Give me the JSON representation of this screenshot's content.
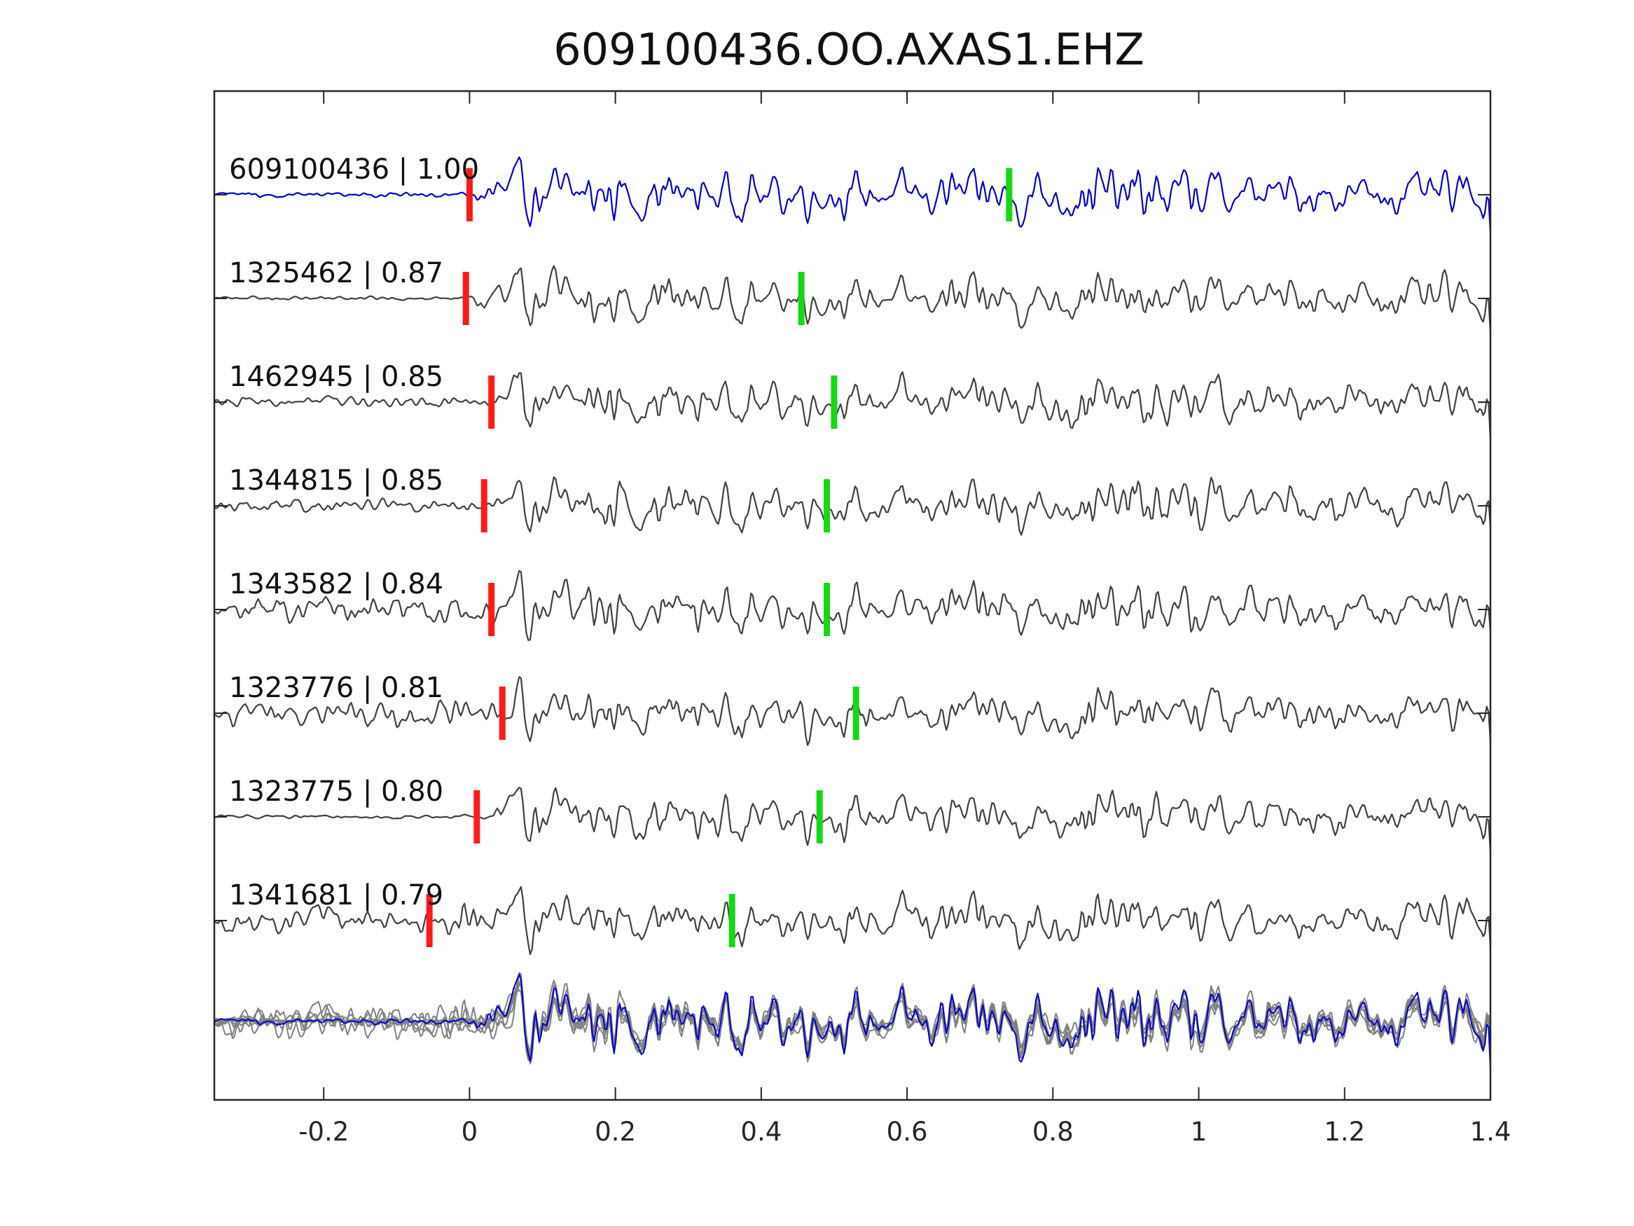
{
  "chart_data": {
    "type": "line",
    "title": "609100436.OO.AXAS1.EHZ",
    "xlabel": "",
    "ylabel": "",
    "xlim": [
      -0.35,
      1.4
    ],
    "xticks": [
      -0.2,
      0,
      0.2,
      0.4,
      0.6,
      0.8,
      1,
      1.2,
      1.4
    ],
    "xtick_labels": [
      "-0.2",
      "0",
      "0.2",
      "0.4",
      "0.6",
      "0.8",
      "1",
      "1.2",
      "1.4"
    ],
    "grid": false,
    "legend": "none",
    "colors": {
      "reference_trace": "#0000cc",
      "neighbor_trace": "#404040",
      "stack_trace": "#808080",
      "p_pick": "#ff1a1a",
      "s_pick": "#14d914"
    },
    "traces": [
      {
        "label": "609100436 | 1.00",
        "event_id": "609100436",
        "cc": 1.0,
        "p_pick": 0.0,
        "s_pick": 0.74,
        "role": "reference",
        "noise": 0.15,
        "seed": 11
      },
      {
        "label": "1325462 | 0.87",
        "event_id": "1325462",
        "cc": 0.87,
        "p_pick": -0.005,
        "s_pick": 0.455,
        "role": "neighbor",
        "noise": 0.12,
        "seed": 23
      },
      {
        "label": "1462945 | 0.85",
        "event_id": "1462945",
        "cc": 0.85,
        "p_pick": 0.03,
        "s_pick": 0.5,
        "role": "neighbor",
        "noise": 0.35,
        "seed": 37
      },
      {
        "label": "1344815 | 0.85",
        "event_id": "1344815",
        "cc": 0.85,
        "p_pick": 0.02,
        "s_pick": 0.49,
        "role": "neighbor",
        "noise": 0.4,
        "seed": 41
      },
      {
        "label": "1343582 | 0.84",
        "event_id": "1343582",
        "cc": 0.84,
        "p_pick": 0.03,
        "s_pick": 0.49,
        "role": "neighbor",
        "noise": 0.85,
        "seed": 53
      },
      {
        "label": "1323776 | 0.81",
        "event_id": "1323776",
        "cc": 0.81,
        "p_pick": 0.045,
        "s_pick": 0.53,
        "role": "neighbor",
        "noise": 0.75,
        "seed": 67
      },
      {
        "label": "1323775 | 0.80",
        "event_id": "1323775",
        "cc": 0.8,
        "p_pick": 0.01,
        "s_pick": 0.48,
        "role": "neighbor",
        "noise": 0.12,
        "seed": 71
      },
      {
        "label": "1341681 | 0.79",
        "event_id": "1341681",
        "cc": 0.79,
        "p_pick": -0.055,
        "s_pick": 0.36,
        "role": "neighbor",
        "noise": 0.8,
        "seed": 89
      }
    ]
  }
}
